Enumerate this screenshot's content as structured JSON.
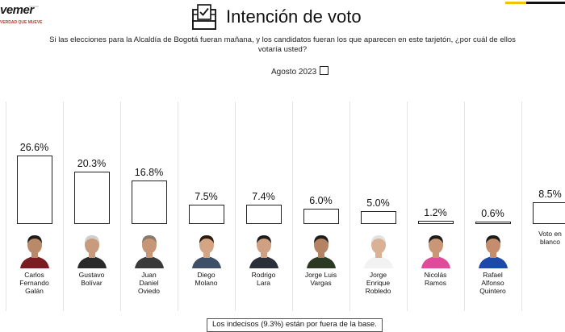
{
  "brand": {
    "name": "vemer",
    "tagline": "VERDAD QUE MUEVE"
  },
  "header": {
    "title": "Intención de voto",
    "question": "Si las elecciones para la Alcaldía de Bogotá fueran mañana, y los candidatos fueran los que aparecen en este tarjetón, ¿por cuál de ellos votaría usted?"
  },
  "legend": {
    "label": "Agosto 2023"
  },
  "footnote": "Los indecisos (9.3%) están por fuera de la base.",
  "chart_data": {
    "type": "bar",
    "title": "Intención de voto",
    "categories": [
      "Carlos Fernando Galán",
      "Gustavo Bolívar",
      "Juan Daniel Oviedo",
      "Diego Molano",
      "Rodrigo Lara",
      "Jorge Luis Vargas",
      "Jorge Enrique Robledo",
      "Nicolás Ramos",
      "Rafael Alfonso Quintero",
      "Voto en blanco"
    ],
    "name_lines": [
      [
        "Carlos",
        "Fernando",
        "Galán"
      ],
      [
        "Gustavo",
        "Bolívar"
      ],
      [
        "Juan",
        "Daniel",
        "Oviedo"
      ],
      [
        "Diego",
        "Molano"
      ],
      [
        "Rodrigo",
        "Lara"
      ],
      [
        "Jorge Luis",
        "Vargas"
      ],
      [
        "Jorge",
        "Enrique",
        "Robledo"
      ],
      [
        "Nicolás",
        "Ramos"
      ],
      [
        "Rafael",
        "Alfonso",
        "Quintero"
      ],
      [
        "Voto en",
        "blanco"
      ]
    ],
    "series": [
      {
        "name": "Agosto 2023",
        "values": [
          26.6,
          20.3,
          16.8,
          7.5,
          7.4,
          6.0,
          5.0,
          1.2,
          0.6,
          8.5
        ]
      }
    ],
    "value_labels": [
      "26.6%",
      "20.3%",
      "16.8%",
      "7.5%",
      "7.4%",
      "6.0%",
      "5.0%",
      "1.2%",
      "0.6%",
      "8.5%"
    ],
    "photos": [
      {
        "skin": "#b98a6a",
        "hair": "#1c1c1c",
        "shirt": "#7a1d22"
      },
      {
        "skin": "#c89b7e",
        "hair": "#cfcfcf",
        "shirt": "#2a2a2a"
      },
      {
        "skin": "#c69677",
        "hair": "#8a7a6a",
        "shirt": "#3a3a3a"
      },
      {
        "skin": "#d3a585",
        "hair": "#2a1a10",
        "shirt": "#3d5068"
      },
      {
        "skin": "#d0a082",
        "hair": "#1c1c1c",
        "shirt": "#2b2f3a"
      },
      {
        "skin": "#b48363",
        "hair": "#1e1e1e",
        "shirt": "#2c3a24"
      },
      {
        "skin": "#d9b194",
        "hair": "#e2e2e2",
        "shirt": "#f2f2f2"
      },
      {
        "skin": "#c99676",
        "hair": "#1c1c1c",
        "shirt": "#e04a9a"
      },
      {
        "skin": "#c48e6e",
        "hair": "#1c1c1c",
        "shirt": "#1d4aa8"
      }
    ],
    "ylim": [
      0,
      30
    ],
    "grid": false
  }
}
